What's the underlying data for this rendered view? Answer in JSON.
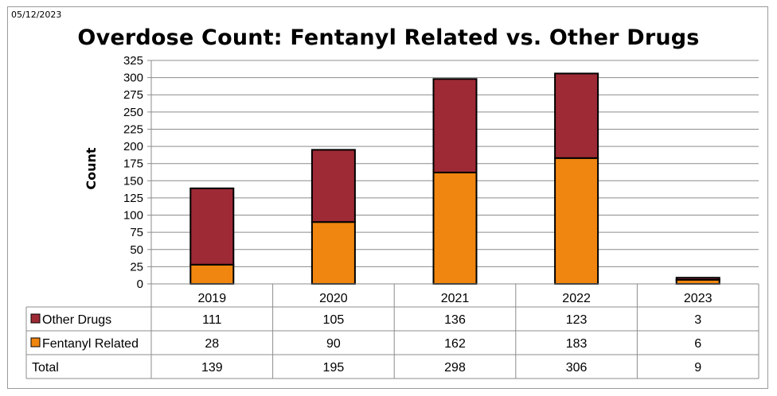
{
  "date_stamp": "05/12/2023",
  "chart_data": {
    "type": "bar",
    "stacked": true,
    "title": "Overdose Count: Fentanyl Related vs. Other Drugs",
    "xlabel": "",
    "ylabel": "Count",
    "ylim": [
      0,
      325
    ],
    "yticks": [
      0,
      25,
      50,
      75,
      100,
      125,
      150,
      175,
      200,
      225,
      250,
      275,
      300,
      325
    ],
    "grid": true,
    "categories": [
      "2019",
      "2020",
      "2021",
      "2022",
      "2023"
    ],
    "series": [
      {
        "name": "Other Drugs",
        "color": "#9e2a35",
        "values": [
          111,
          105,
          136,
          123,
          3
        ]
      },
      {
        "name": "Fentanyl Related",
        "color": "#f0860f",
        "values": [
          28,
          90,
          162,
          183,
          6
        ]
      }
    ],
    "data_table": {
      "rows": [
        {
          "label": "Other Drugs",
          "legend_color": "#9e2a35",
          "values": [
            "111",
            "105",
            "136",
            "123",
            "3"
          ]
        },
        {
          "label": "Fentanyl Related",
          "legend_color": "#f0860f",
          "values": [
            "28",
            "90",
            "162",
            "183",
            "6"
          ]
        },
        {
          "label": "Total",
          "legend_color": "",
          "values": [
            "139",
            "195",
            "298",
            "306",
            "9"
          ]
        }
      ]
    }
  }
}
